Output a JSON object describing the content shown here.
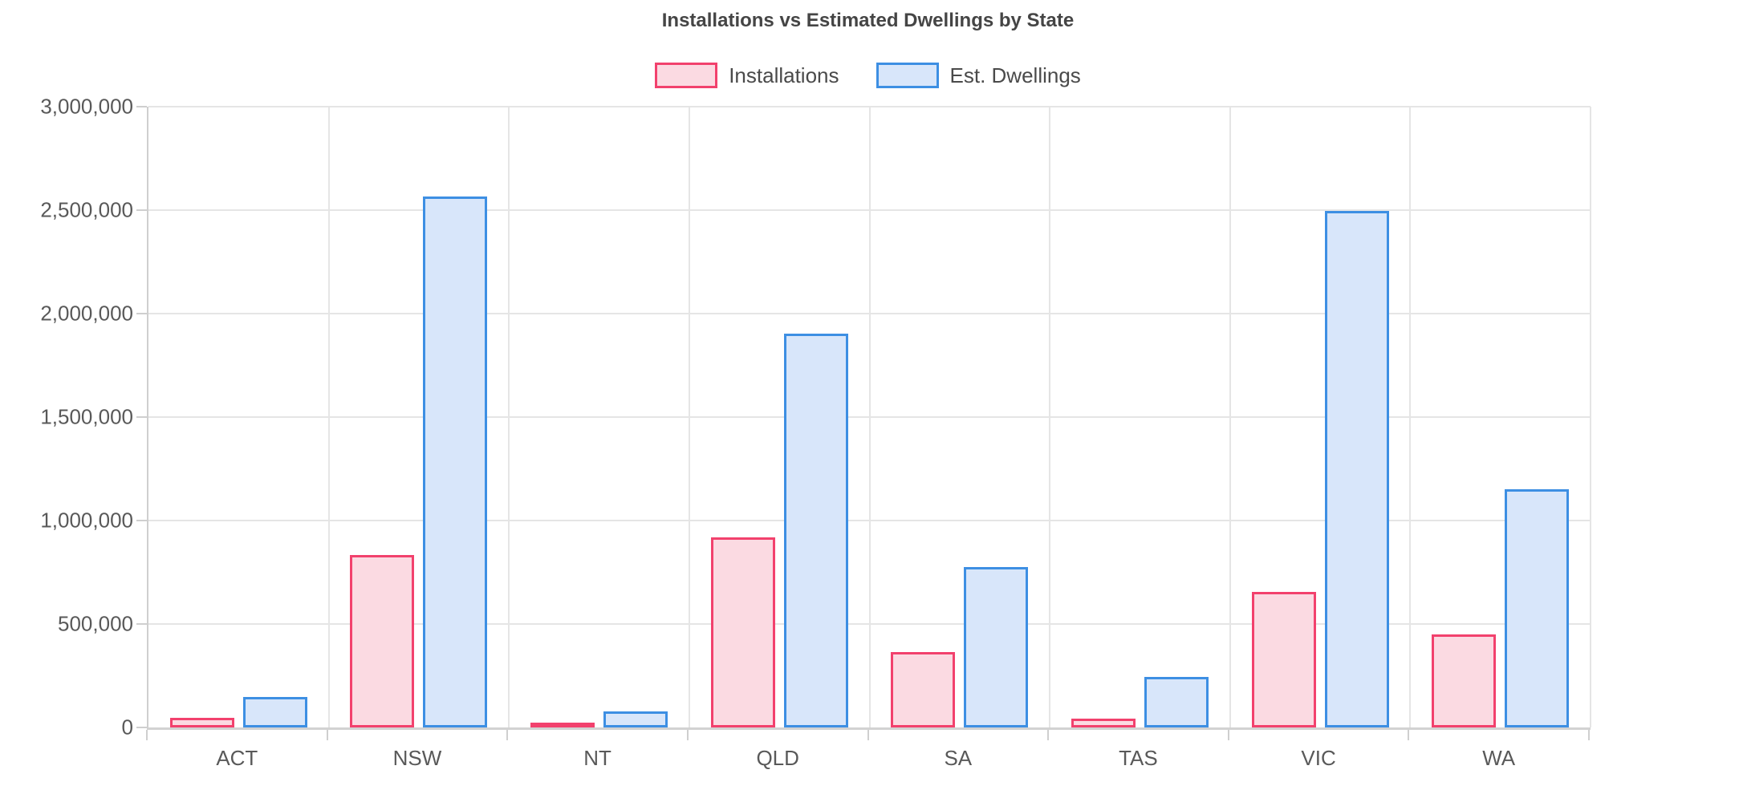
{
  "chart_data": {
    "type": "bar",
    "title": "Installations vs Estimated Dwellings by State",
    "categories": [
      "ACT",
      "NSW",
      "NT",
      "QLD",
      "SA",
      "TAS",
      "VIC",
      "WA"
    ],
    "series": [
      {
        "name": "Installations",
        "color_border": "#f2416d",
        "color_fill": "#fbdae2",
        "values": [
          45000,
          835000,
          22000,
          920000,
          365000,
          43000,
          655000,
          450000
        ]
      },
      {
        "name": "Est. Dwellings",
        "color_border": "#3d8fe3",
        "color_fill": "#d8e6fa",
        "values": [
          148000,
          2565000,
          78000,
          1905000,
          775000,
          245000,
          2495000,
          1150000
        ]
      }
    ],
    "xlabel": "",
    "ylabel": "",
    "ylim": [
      0,
      3000000
    ],
    "ytick_step": 500000,
    "ytick_labels": [
      "0",
      "500,000",
      "1,000,000",
      "1,500,000",
      "2,000,000",
      "2,500,000",
      "3,000,000"
    ],
    "grid": true,
    "legend_position": "top",
    "colors": {
      "title_text": "#454545",
      "axis_text": "#595959",
      "gridline": "#e5e5e5",
      "axis_line": "#cfcfcf",
      "background": "#ffffff"
    }
  }
}
